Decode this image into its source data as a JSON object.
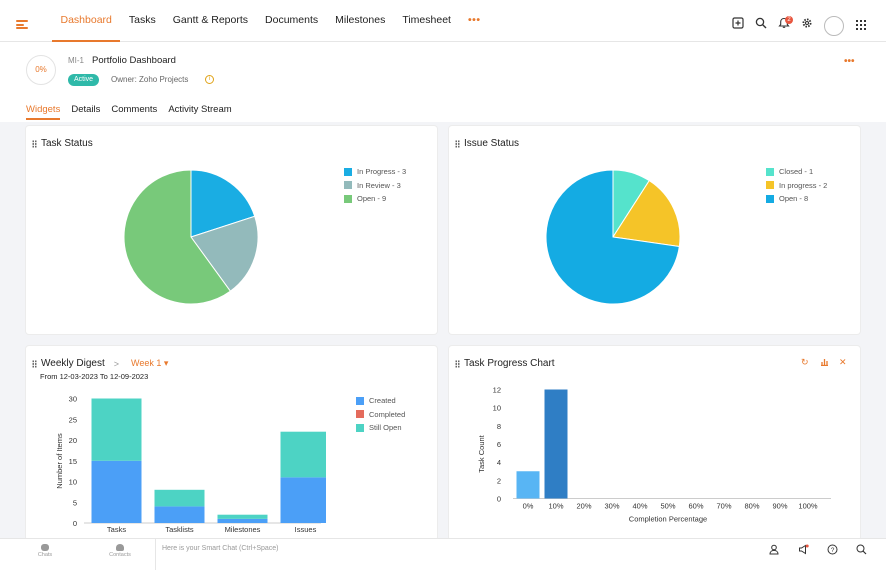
{
  "nav": {
    "tabs": [
      "Dashboard",
      "Tasks",
      "Gantt & Reports",
      "Documents",
      "Milestones",
      "Timesheet"
    ],
    "active_tab": "Dashboard",
    "more": "•••",
    "notification_count": "2"
  },
  "project": {
    "progress": "0%",
    "id": "MI-1",
    "name": "Portfolio Dashboard",
    "status": "Active",
    "owner": "Owner: Zoho Projects",
    "more": "•••"
  },
  "subtabs": [
    "Widgets",
    "Details",
    "Comments",
    "Activity Stream"
  ],
  "task_status": {
    "title": "Task Status",
    "chart_data": {
      "type": "pie",
      "slices": [
        {
          "label": "In Progress - 3",
          "value": 3,
          "color": "#1aade3"
        },
        {
          "label": "In Review - 3",
          "value": 3,
          "color": "#93babb"
        },
        {
          "label": "Open - 9",
          "value": 9,
          "color": "#78c97a"
        }
      ]
    }
  },
  "issue_status": {
    "title": "Issue Status",
    "chart_data": {
      "type": "pie",
      "slices": [
        {
          "label": "Closed - 1",
          "value": 1,
          "color": "#55e3cc"
        },
        {
          "label": "In progress - 2",
          "value": 2,
          "color": "#f5c428"
        },
        {
          "label": "Open - 8",
          "value": 8,
          "color": "#14abe3"
        }
      ]
    }
  },
  "weekly_digest": {
    "title": "Weekly Digest",
    "week": "Week 1",
    "range": "From 12-03-2023 To 12-09-2023",
    "chart_data": {
      "type": "bar",
      "categories": [
        "Tasks",
        "Tasklists",
        "Milestones",
        "Issues"
      ],
      "series": [
        {
          "name": "Created",
          "values": [
            15,
            4,
            1,
            11
          ],
          "color": "#4b9ff7"
        },
        {
          "name": "Completed",
          "values": [
            0,
            0,
            0,
            0
          ],
          "color": "#e46b5c"
        },
        {
          "name": "Still Open",
          "values": [
            15,
            4,
            1,
            11
          ],
          "color": "#4dd3c4"
        }
      ],
      "ylabel": "Number of Items",
      "yticks": [
        "0",
        "5",
        "10",
        "15",
        "20",
        "25",
        "30"
      ],
      "ylim": [
        0,
        30
      ]
    }
  },
  "task_progress": {
    "title": "Task Progress Chart",
    "chart_data": {
      "type": "bar",
      "categories": [
        "0%",
        "10%",
        "20%",
        "30%",
        "40%",
        "50%",
        "60%",
        "70%",
        "80%",
        "90%",
        "100%"
      ],
      "values": [
        3,
        12,
        0,
        0,
        0,
        0,
        0,
        0,
        0,
        0,
        0
      ],
      "colors": [
        "#58b5f4",
        "#2f7ec5"
      ],
      "xlabel": "Completion Percentage",
      "ylabel": "Task Count",
      "yticks": [
        "0",
        "2",
        "4",
        "6",
        "8",
        "10",
        "12"
      ],
      "ylim": [
        0,
        12
      ]
    }
  },
  "bottom": {
    "chats": "Chats",
    "contacts": "Contacts",
    "smart_chat_placeholder": "Here is your Smart Chat (Ctrl+Space)"
  },
  "colors": {
    "accent": "#e8792d"
  }
}
